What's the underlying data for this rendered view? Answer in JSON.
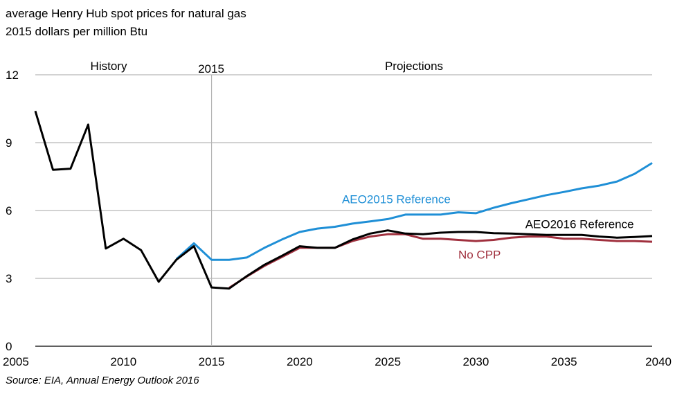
{
  "chart_data": {
    "type": "line",
    "title": "average Henry Hub spot prices for natural gas",
    "subtitle": "2015 dollars per million Btu",
    "source": "Source:  EIA, Annual Energy Outlook 2016",
    "xlim": [
      2005,
      2040
    ],
    "ylim": [
      0,
      12
    ],
    "x_ticks": [
      2005,
      2010,
      2015,
      2020,
      2025,
      2030,
      2035,
      2040
    ],
    "y_ticks": [
      0,
      3,
      6,
      9,
      12
    ],
    "grid": "horizontal",
    "annotations": {
      "history": "History",
      "divider_year": "2015",
      "projections": "Projections"
    },
    "divider_x": 2015,
    "series": [
      {
        "name": "AEO2015 Reference",
        "color": "#1f8fd6",
        "label_x": 2022.4,
        "label_y": 6.5,
        "x": [
          2013,
          2014,
          2015,
          2016,
          2017,
          2018,
          2019,
          2020,
          2021,
          2022,
          2023,
          2024,
          2025,
          2026,
          2027,
          2028,
          2029,
          2030,
          2031,
          2032,
          2033,
          2034,
          2035,
          2036,
          2037,
          2038,
          2039,
          2040
        ],
        "y": [
          3.85,
          4.55,
          3.82,
          3.82,
          3.92,
          4.35,
          4.72,
          5.05,
          5.2,
          5.28,
          5.42,
          5.52,
          5.62,
          5.82,
          5.82,
          5.82,
          5.92,
          5.88,
          6.12,
          6.32,
          6.5,
          6.68,
          6.82,
          6.98,
          7.1,
          7.28,
          7.62,
          8.1
        ]
      },
      {
        "name": "No CPP",
        "color": "#a0303e",
        "label_x": 2029.0,
        "label_y": 4.05,
        "x": [
          2016,
          2017,
          2018,
          2019,
          2020,
          2021,
          2022,
          2023,
          2024,
          2025,
          2026,
          2027,
          2028,
          2029,
          2030,
          2031,
          2032,
          2033,
          2034,
          2035,
          2036,
          2037,
          2038,
          2039,
          2040
        ],
        "y": [
          2.58,
          3.08,
          3.55,
          3.95,
          4.35,
          4.35,
          4.35,
          4.65,
          4.85,
          4.95,
          4.95,
          4.75,
          4.75,
          4.7,
          4.65,
          4.7,
          4.8,
          4.85,
          4.85,
          4.75,
          4.75,
          4.7,
          4.65,
          4.65,
          4.62
        ]
      },
      {
        "name": "AEO2016 Reference",
        "color": "#000000",
        "label_x": 2032.8,
        "label_y": 5.4,
        "x": [
          2005,
          2006,
          2007,
          2008,
          2009,
          2010,
          2011,
          2012,
          2013,
          2014,
          2015,
          2016,
          2017,
          2018,
          2019,
          2020,
          2021,
          2022,
          2023,
          2024,
          2025,
          2026,
          2027,
          2028,
          2029,
          2030,
          2031,
          2032,
          2033,
          2034,
          2035,
          2036,
          2037,
          2038,
          2039,
          2040
        ],
        "y": [
          10.4,
          7.8,
          7.85,
          9.8,
          4.32,
          4.75,
          4.25,
          2.85,
          3.82,
          4.42,
          2.6,
          2.55,
          3.1,
          3.6,
          4.0,
          4.42,
          4.35,
          4.35,
          4.72,
          4.98,
          5.12,
          4.98,
          4.95,
          5.02,
          5.05,
          5.05,
          5.0,
          4.98,
          4.95,
          4.92,
          4.92,
          4.92,
          4.85,
          4.8,
          4.83,
          4.87
        ]
      }
    ]
  }
}
